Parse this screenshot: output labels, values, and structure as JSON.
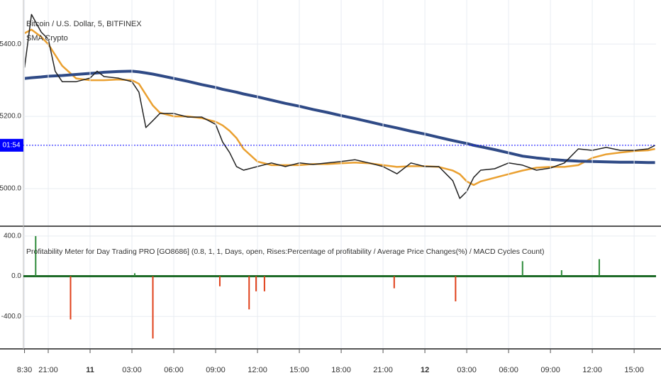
{
  "chart_data": [
    {
      "type": "line",
      "title": "Bitcoin / U.S. Dollar, 5, BITFINEX",
      "subtitle": "SMA Crypto",
      "x": [
        19.3,
        19.8,
        20.5,
        21,
        21.5,
        22,
        23,
        24,
        24.5,
        25,
        26,
        27,
        27.5,
        28,
        28.5,
        29,
        30,
        31,
        32,
        33,
        33.5,
        34,
        34.5,
        35,
        36,
        37,
        38,
        39,
        40,
        41,
        42,
        43,
        44,
        45,
        46,
        47,
        48,
        49,
        50,
        50.5,
        51,
        51.5,
        52,
        53,
        54,
        55,
        56,
        57,
        58,
        59,
        60,
        61,
        62,
        63,
        64,
        64.5
      ],
      "series": [
        {
          "color": "#eaa030",
          "width": 2.5,
          "values": [
            5430,
            5440,
            5420,
            5400,
            5370,
            5340,
            5305,
            5300,
            5300,
            5300,
            5302,
            5300,
            5290,
            5260,
            5230,
            5210,
            5200,
            5200,
            5195,
            5185,
            5175,
            5160,
            5140,
            5110,
            5075,
            5065,
            5065,
            5065,
            5068,
            5068,
            5070,
            5072,
            5070,
            5065,
            5060,
            5062,
            5062,
            5060,
            5050,
            5040,
            5020,
            5010,
            5020,
            5030,
            5040,
            5050,
            5058,
            5060,
            5060,
            5065,
            5085,
            5095,
            5100,
            5104,
            5106,
            5110
          ]
        },
        {
          "color": "#2f4a86",
          "width": 4,
          "values": [
            5305,
            5307,
            5309,
            5311,
            5312,
            5313,
            5316,
            5319,
            5320,
            5322,
            5324,
            5325,
            5323,
            5320,
            5317,
            5313,
            5305,
            5297,
            5288,
            5280,
            5275,
            5271,
            5267,
            5262,
            5254,
            5245,
            5236,
            5228,
            5219,
            5211,
            5202,
            5194,
            5185,
            5176,
            5168,
            5159,
            5151,
            5142,
            5133,
            5129,
            5125,
            5120,
            5116,
            5108,
            5099,
            5090,
            5085,
            5081,
            5078,
            5076,
            5075,
            5074,
            5073,
            5073,
            5072,
            5072
          ]
        },
        {
          "color": "#222222",
          "width": 1.5,
          "values": [
            5335,
            5482,
            5433,
            5414,
            5325,
            5296,
            5296,
            5306,
            5325,
            5310,
            5306,
            5296,
            5267,
            5169,
            5188,
            5208,
            5208,
            5198,
            5198,
            5178,
            5129,
            5100,
            5061,
            5051,
            5061,
            5071,
            5061,
            5071,
            5067,
            5071,
            5075,
            5080,
            5071,
            5061,
            5041,
            5071,
            5061,
            5061,
            5022,
            4973,
            4992,
            5031,
            5051,
            5055,
            5071,
            5065,
            5051,
            5057,
            5071,
            5110,
            5106,
            5114,
            5106,
            5106,
            5110,
            5120
          ]
        }
      ],
      "xlim": [
        19.22,
        64.57
      ],
      "ylim": [
        4898,
        5522
      ],
      "yticks": [
        {
          "value": 5000,
          "label": "5000.0"
        },
        {
          "value": 5200,
          "label": "5200.0"
        },
        {
          "value": 5400,
          "label": "5400.0"
        }
      ],
      "grid": true,
      "price_line": 5120,
      "price_line_label": "01:54",
      "price_line_color": "#0000ff"
    },
    {
      "type": "bar",
      "title": "Profitability Meter for Day Trading PRO [GO8686] (0.8, 1, 1, Days, open, Rises:Percentage of profitability / Average Price Changes(%) / MACD Cycles Count)",
      "x": [
        20.1,
        22.6,
        27.2,
        28.5,
        33.3,
        35.4,
        35.9,
        36.5,
        45.8,
        50.2,
        55,
        57.8,
        60.5
      ],
      "values": [
        400,
        -430,
        30,
        -620,
        -100,
        -330,
        -150,
        -150,
        -120,
        -250,
        150,
        60,
        170
      ],
      "positive_color": "#2e8b3a",
      "negative_color": "#e0401a",
      "xlim": [
        19.22,
        64.57
      ],
      "ylim": [
        -716,
        491
      ],
      "yticks": [
        {
          "value": -400,
          "label": "-400.0"
        },
        {
          "value": 0,
          "label": "0.0"
        },
        {
          "value": 400,
          "label": "400.0"
        }
      ],
      "xticks": [
        {
          "value": 19.3,
          "label": "8:30"
        },
        {
          "value": 21,
          "label": "21:00"
        },
        {
          "value": 24,
          "label": "11"
        },
        {
          "value": 27,
          "label": "03:00"
        },
        {
          "value": 30,
          "label": "06:00"
        },
        {
          "value": 33,
          "label": "09:00"
        },
        {
          "value": 36,
          "label": "12:00"
        },
        {
          "value": 39,
          "label": "15:00"
        },
        {
          "value": 42,
          "label": "18:00"
        },
        {
          "value": 45,
          "label": "21:00"
        },
        {
          "value": 48,
          "label": "12"
        },
        {
          "value": 51,
          "label": "03:00"
        },
        {
          "value": 54,
          "label": "06:00"
        },
        {
          "value": 57,
          "label": "09:00"
        },
        {
          "value": 60,
          "label": "12:00"
        },
        {
          "value": 63,
          "label": "15:00"
        }
      ],
      "grid": true
    }
  ]
}
